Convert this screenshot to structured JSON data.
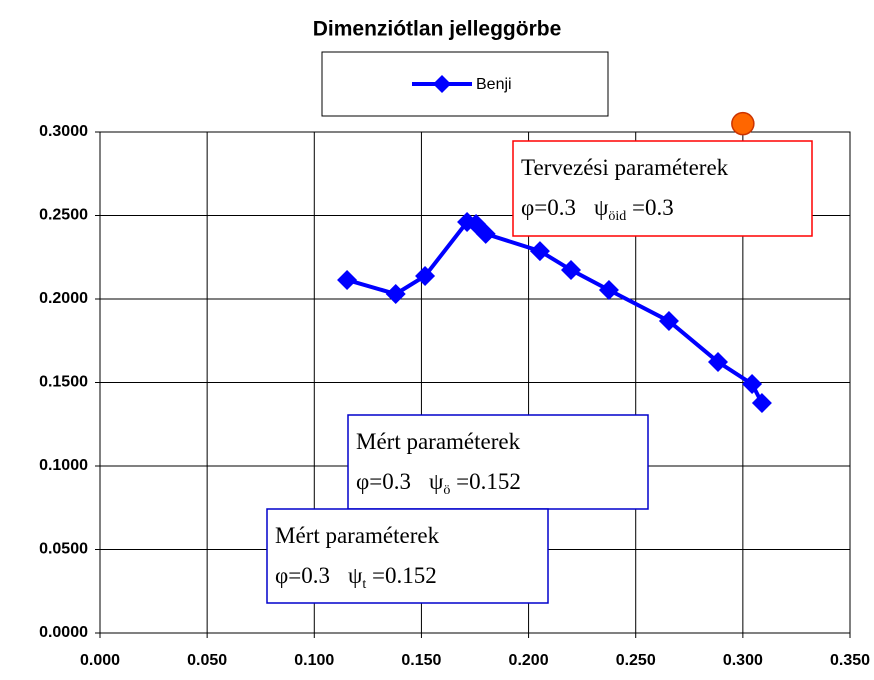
{
  "chart_data": {
    "type": "line",
    "title": "Dimenziótlan jelleggörbe",
    "series": [
      {
        "name": "Benji",
        "color": "#0000ff",
        "x": [
          0.1153,
          0.138,
          0.1517,
          0.1713,
          0.1755,
          0.18,
          0.2053,
          0.2198,
          0.2375,
          0.2655,
          0.2884,
          0.3043,
          0.3089
        ],
        "values": [
          0.2114,
          0.203,
          0.2138,
          0.2461,
          0.2449,
          0.239,
          0.2287,
          0.2174,
          0.2054,
          0.1868,
          0.1623,
          0.1491,
          0.1377
        ]
      }
    ],
    "highlight": {
      "x": 0.3,
      "y": 0.305,
      "color": "#ff6600"
    },
    "xlim": [
      0,
      0.35
    ],
    "xticks": [
      {
        "value": 0,
        "label": "0.000"
      },
      {
        "value": 0.05,
        "label": "0.050"
      },
      {
        "value": 0.1,
        "label": "0.100"
      },
      {
        "value": 0.15,
        "label": "0.150"
      },
      {
        "value": 0.2,
        "label": "0.200"
      },
      {
        "value": 0.25,
        "label": "0.250"
      },
      {
        "value": 0.3,
        "label": "0.300"
      },
      {
        "value": 0.35,
        "label": "0.350"
      }
    ],
    "ylim": [
      0,
      0.3
    ],
    "yticks": [
      {
        "value": 0,
        "label": "0.0000"
      },
      {
        "value": 0.05,
        "label": "0.0500"
      },
      {
        "value": 0.1,
        "label": "0.1000"
      },
      {
        "value": 0.15,
        "label": "0.1500"
      },
      {
        "value": 0.2,
        "label": "0.2000"
      },
      {
        "value": 0.25,
        "label": "0.2500"
      },
      {
        "value": 0.3,
        "label": "0.3000"
      }
    ],
    "grid": true,
    "annotations": [
      {
        "title": "Tervezési paraméterek",
        "phi": "φ=0.3",
        "psi": "ψ",
        "sub": "öid",
        "eq": " =0.3",
        "color": "#ff0000"
      },
      {
        "title": "Mért paraméterek",
        "phi": "φ=0.3",
        "psi": "ψ",
        "sub": "ö",
        "eq": " =0.152",
        "color": "#0000cc"
      },
      {
        "title": "Mért paraméterek",
        "phi": "φ=0.3",
        "psi": "ψ",
        "sub": "t",
        "eq": " =0.152",
        "color": "#0000cc"
      }
    ]
  }
}
